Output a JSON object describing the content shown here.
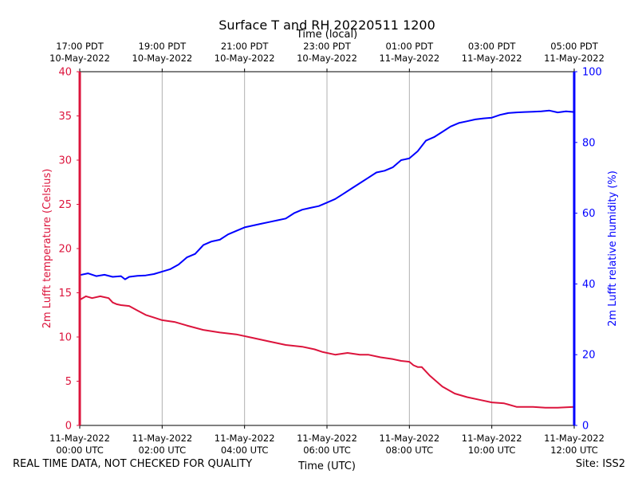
{
  "chart_data": {
    "type": "line",
    "title": "Surface T and RH 20220511 1200",
    "top_axis_label": "Time (local)",
    "xlabel": "Time (UTC)",
    "ylabel_left": "2m Lufft temperature (Celsius)",
    "ylabel_right": "2m Lufft relative humidity (%)",
    "xlim_hours_utc": [
      0,
      12
    ],
    "ylim_left": [
      0,
      40
    ],
    "ylim_right": [
      0,
      100
    ],
    "grid": "vertical",
    "colors": {
      "temperature": "#dc143c",
      "humidity": "#0000ff",
      "grid": "#b0b0b0",
      "axis": "#000000"
    },
    "bottom_ticks": [
      {
        "hour": 0,
        "date": "11-May-2022",
        "time": "00:00 UTC"
      },
      {
        "hour": 2,
        "date": "11-May-2022",
        "time": "02:00 UTC"
      },
      {
        "hour": 4,
        "date": "11-May-2022",
        "time": "04:00 UTC"
      },
      {
        "hour": 6,
        "date": "11-May-2022",
        "time": "06:00 UTC"
      },
      {
        "hour": 8,
        "date": "11-May-2022",
        "time": "08:00 UTC"
      },
      {
        "hour": 10,
        "date": "11-May-2022",
        "time": "10:00 UTC"
      },
      {
        "hour": 12,
        "date": "11-May-2022",
        "time": "12:00 UTC"
      }
    ],
    "top_ticks": [
      {
        "hour": 0,
        "time": "17:00 PDT",
        "date": "10-May-2022"
      },
      {
        "hour": 2,
        "time": "19:00 PDT",
        "date": "10-May-2022"
      },
      {
        "hour": 4,
        "time": "21:00 PDT",
        "date": "10-May-2022"
      },
      {
        "hour": 6,
        "time": "23:00 PDT",
        "date": "10-May-2022"
      },
      {
        "hour": 8,
        "time": "01:00 PDT",
        "date": "11-May-2022"
      },
      {
        "hour": 10,
        "time": "03:00 PDT",
        "date": "11-May-2022"
      },
      {
        "hour": 12,
        "time": "05:00 PDT",
        "date": "11-May-2022"
      }
    ],
    "left_ticks": [
      0,
      5,
      10,
      15,
      20,
      25,
      30,
      35,
      40
    ],
    "right_ticks": [
      0,
      20,
      40,
      60,
      80,
      100
    ],
    "series": [
      {
        "name": "2m Lufft temperature",
        "axis": "left",
        "x": [
          0,
          0.15,
          0.3,
          0.5,
          0.7,
          0.8,
          0.9,
          1.0,
          1.2,
          1.4,
          1.6,
          1.8,
          2.0,
          2.3,
          2.6,
          3.0,
          3.4,
          3.8,
          4.2,
          4.6,
          5.0,
          5.4,
          5.7,
          5.9,
          6.2,
          6.5,
          6.8,
          7.0,
          7.3,
          7.6,
          7.8,
          8.0,
          8.1,
          8.2,
          8.3,
          8.5,
          8.8,
          9.1,
          9.4,
          9.7,
          10.0,
          10.3,
          10.6,
          11.0,
          11.3,
          11.6,
          12.0
        ],
        "values": [
          14.2,
          14.6,
          14.4,
          14.6,
          14.4,
          13.9,
          13.7,
          13.6,
          13.5,
          13.0,
          12.5,
          12.2,
          11.9,
          11.7,
          11.3,
          10.8,
          10.5,
          10.3,
          9.9,
          9.5,
          9.1,
          8.9,
          8.6,
          8.3,
          8.0,
          8.2,
          8.0,
          8.0,
          7.7,
          7.5,
          7.3,
          7.2,
          6.8,
          6.6,
          6.6,
          5.6,
          4.4,
          3.6,
          3.2,
          2.9,
          2.6,
          2.5,
          2.1,
          2.1,
          2.0,
          2.0,
          2.1
        ]
      },
      {
        "name": "2m Lufft relative humidity",
        "axis": "right",
        "x": [
          0,
          0.2,
          0.4,
          0.6,
          0.8,
          1.0,
          1.1,
          1.2,
          1.4,
          1.6,
          1.8,
          2.0,
          2.2,
          2.4,
          2.6,
          2.8,
          3.0,
          3.2,
          3.4,
          3.6,
          3.8,
          4.0,
          4.2,
          4.4,
          4.6,
          4.8,
          5.0,
          5.2,
          5.4,
          5.6,
          5.8,
          6.0,
          6.2,
          6.4,
          6.6,
          6.8,
          7.0,
          7.2,
          7.4,
          7.6,
          7.8,
          8.0,
          8.2,
          8.4,
          8.6,
          8.8,
          9.0,
          9.2,
          9.4,
          9.6,
          9.8,
          10.0,
          10.2,
          10.4,
          10.6,
          10.8,
          11.0,
          11.2,
          11.4,
          11.6,
          11.8,
          12.0
        ],
        "values": [
          42.5,
          43.0,
          42.2,
          42.6,
          42.0,
          42.2,
          41.3,
          42.0,
          42.3,
          42.4,
          42.8,
          43.5,
          44.2,
          45.5,
          47.5,
          48.5,
          51.0,
          52.0,
          52.5,
          54.0,
          55.0,
          56.0,
          56.5,
          57.0,
          57.5,
          58.0,
          58.5,
          60.0,
          61.0,
          61.5,
          62.0,
          63.0,
          64.0,
          65.5,
          67.0,
          68.5,
          70.0,
          71.5,
          72.0,
          73.0,
          75.0,
          75.5,
          77.5,
          80.5,
          81.5,
          83.0,
          84.5,
          85.5,
          86.0,
          86.5,
          86.8,
          87.0,
          87.8,
          88.3,
          88.5,
          88.6,
          88.7,
          88.8,
          89.0,
          88.5,
          88.8,
          88.6
        ]
      }
    ]
  },
  "footer": {
    "disclaimer": "REAL TIME DATA, NOT CHECKED FOR QUALITY",
    "site": "Site: ISS2"
  }
}
